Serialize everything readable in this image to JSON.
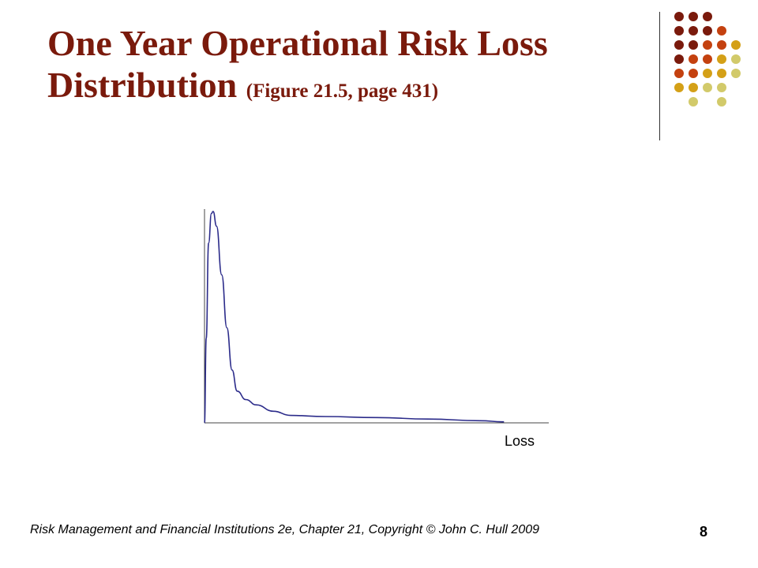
{
  "slide": {
    "title_main": "One Year Operational Risk Loss Distribution",
    "title_ref": "(Figure 21.5, page 431)",
    "footer": "Risk Management and Financial Institutions 2e, Chapter 21,  Copyright © John C. Hull 2009",
    "page_number": "8"
  },
  "theme": {
    "title_color": "#7a1a0c",
    "curve_color": "#2b2b8a",
    "axis_color": "#444444",
    "dot_colors": [
      "#7a1a0c",
      "#c4410f",
      "#d4a017",
      "#d2ca6a"
    ]
  },
  "chart_data": {
    "type": "line",
    "title": "",
    "xlabel": "Loss",
    "ylabel": "",
    "grid": false,
    "series": [
      {
        "values": [
          [
            0.0,
            0.0
          ],
          [
            0.005,
            0.4
          ],
          [
            0.012,
            0.85
          ],
          [
            0.02,
            0.99
          ],
          [
            0.025,
            1.0
          ],
          [
            0.035,
            0.93
          ],
          [
            0.05,
            0.7
          ],
          [
            0.065,
            0.45
          ],
          [
            0.08,
            0.25
          ],
          [
            0.095,
            0.15
          ],
          [
            0.12,
            0.11
          ],
          [
            0.15,
            0.085
          ],
          [
            0.2,
            0.055
          ],
          [
            0.25,
            0.035
          ],
          [
            0.35,
            0.03
          ],
          [
            0.5,
            0.025
          ],
          [
            0.65,
            0.018
          ],
          [
            0.8,
            0.01
          ],
          [
            0.87,
            0.005
          ]
        ]
      }
    ]
  }
}
